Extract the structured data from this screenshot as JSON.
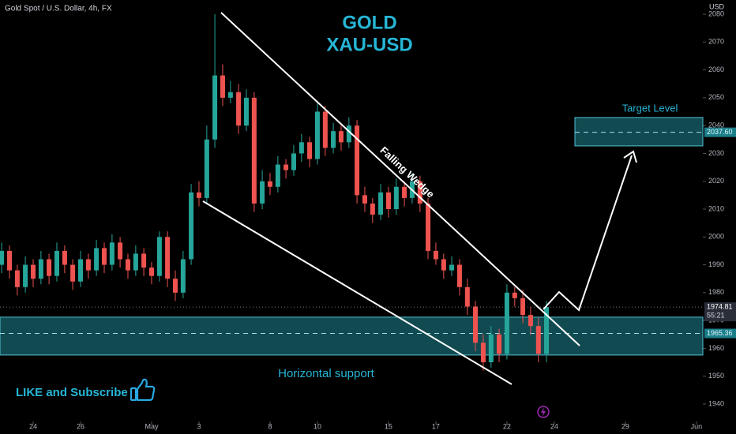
{
  "chart_data": {
    "type": "candlestick",
    "title": "Gold Spot / U.S. Dollar, 4h, FX",
    "y_unit": "USD",
    "headline": [
      "GOLD",
      "XAU-USD"
    ],
    "pattern_label": "Falling Wedge",
    "call_to_action": "LIKE and Subscribe",
    "countdown": "55:21",
    "up_color": "#26a69a",
    "down_color": "#ef5350",
    "x": [
      -1.33,
      -1,
      -0.67,
      -0.33,
      0,
      0.33,
      0.67,
      1,
      1.33,
      1.67,
      2,
      2.33,
      2.67,
      3,
      3.33,
      3.67,
      4,
      4.33,
      4.67,
      5,
      5.33,
      5.67,
      6,
      6.33,
      6.67,
      7,
      7.33,
      7.67,
      8,
      8.33,
      8.67,
      9,
      9.33,
      9.67,
      10,
      10.33,
      10.67,
      11,
      11.33,
      11.67,
      12,
      12.33,
      12.67,
      13,
      13.33,
      13.67,
      14,
      14.33,
      14.67,
      15,
      15.33,
      15.67,
      16,
      16.33,
      16.67,
      17,
      17.33,
      17.67,
      18,
      18.33,
      18.67,
      19,
      19.33,
      19.67,
      20,
      20.33,
      20.67,
      21,
      21.33,
      21.67
    ],
    "open": [
      1990,
      1995,
      1988,
      1982,
      1990,
      1985,
      1992,
      1986,
      1995,
      1990,
      1984,
      1992,
      1988,
      1996,
      1990,
      1998,
      1992,
      1988,
      1994,
      1989,
      1986,
      2000,
      1985,
      1980,
      1992,
      2016,
      2014,
      2035,
      2058,
      2050,
      2052,
      2040,
      2050,
      2012,
      2020,
      2018,
      2026,
      2024,
      2030,
      2034,
      2028,
      2045,
      2032,
      2038,
      2034,
      2040,
      2015,
      2012,
      2008,
      2016,
      2010,
      2018,
      2014,
      2020,
      2012,
      1995,
      1992,
      1988,
      1990,
      1982,
      1975,
      1962,
      1955,
      1965,
      1958,
      1980,
      1978,
      1972,
      1968,
      1958
    ],
    "high": [
      1998,
      1997,
      1990,
      1993,
      1992,
      1995,
      1994,
      1998,
      1997,
      1992,
      1995,
      1994,
      1999,
      1998,
      2001,
      2000,
      1994,
      1997,
      1996,
      1991,
      2002,
      2002,
      1988,
      1995,
      2019,
      2020,
      2040,
      2080,
      2062,
      2056,
      2055,
      2053,
      2052,
      2024,
      2023,
      2029,
      2028,
      2033,
      2037,
      2036,
      2048,
      2047,
      2041,
      2040,
      2043,
      2042,
      2018,
      2014,
      2019,
      2018,
      2021,
      2020,
      2023,
      2022,
      2014,
      1998,
      1994,
      1993,
      1992,
      1985,
      1977,
      1965,
      1968,
      1967,
      1983,
      1982,
      1981,
      1975,
      1971,
      1977
    ],
    "low": [
      1987,
      1985,
      1979,
      1980,
      1982,
      1983,
      1983,
      1984,
      1987,
      1981,
      1982,
      1985,
      1986,
      1987,
      1988,
      1989,
      1985,
      1986,
      1986,
      1983,
      1984,
      1982,
      1977,
      1978,
      1990,
      2011,
      2012,
      2032,
      2047,
      2048,
      2037,
      2038,
      2009,
      2010,
      2015,
      2016,
      2021,
      2022,
      2027,
      2025,
      2026,
      2029,
      2030,
      2031,
      2032,
      2012,
      2009,
      2005,
      2006,
      2007,
      2008,
      2011,
      2012,
      2009,
      1992,
      1990,
      1985,
      1986,
      1979,
      1972,
      1959,
      1952,
      1953,
      1955,
      1956,
      1975,
      1969,
      1965,
      1955,
      1955
    ],
    "close": [
      1995,
      1988,
      1982,
      1990,
      1985,
      1992,
      1986,
      1995,
      1990,
      1984,
      1992,
      1988,
      1996,
      1990,
      1998,
      1992,
      1988,
      1994,
      1989,
      1986,
      2000,
      1985,
      1980,
      1992,
      2016,
      2014,
      2035,
      2058,
      2050,
      2052,
      2040,
      2050,
      2012,
      2020,
      2018,
      2026,
      2024,
      2030,
      2034,
      2028,
      2045,
      2032,
      2038,
      2034,
      2040,
      2015,
      2012,
      2008,
      2016,
      2010,
      2018,
      2014,
      2020,
      2012,
      1995,
      1992,
      1988,
      1990,
      1982,
      1975,
      1962,
      1955,
      1965,
      1958,
      1980,
      1978,
      1972,
      1968,
      1958,
      1974.81
    ],
    "xlim": [
      -1.4,
      28.27
    ],
    "xticks": [
      {
        "value": 0,
        "label": "24"
      },
      {
        "value": 2,
        "label": "26"
      },
      {
        "value": 5,
        "label": "May"
      },
      {
        "value": 7,
        "label": "3"
      },
      {
        "value": 10,
        "label": "8"
      },
      {
        "value": 12,
        "label": "10"
      },
      {
        "value": 15,
        "label": "15"
      },
      {
        "value": 17,
        "label": "17"
      },
      {
        "value": 20,
        "label": "22"
      },
      {
        "value": 22,
        "label": "24"
      },
      {
        "value": 25,
        "label": "29"
      },
      {
        "value": 28,
        "label": "Jun"
      }
    ],
    "ylim": [
      1934.9,
      2085.1
    ],
    "yticks": [
      1940,
      1950,
      1960,
      1970,
      1980,
      1990,
      2000,
      2010,
      2020,
      2030,
      2040,
      2050,
      2060,
      2070,
      2080
    ],
    "zones": [
      {
        "name": "Target Level",
        "range": [
          2032.7,
          2042.9
        ],
        "mid": {
          "value": 2037.6,
          "label": "2037.60"
        }
      },
      {
        "name": "Horizontal support",
        "range": [
          1957.6,
          1971.2
        ],
        "mid": {
          "value": 1965.36,
          "label": "1965.36"
        }
      }
    ],
    "last_price": {
      "value": 1974.81,
      "label": "1974.81"
    }
  }
}
